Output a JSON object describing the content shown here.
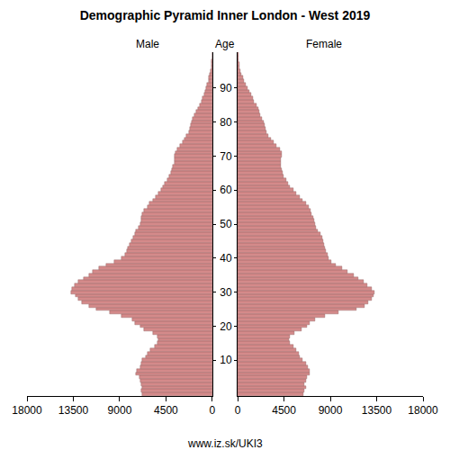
{
  "chart_data": {
    "type": "bar",
    "orientation": "horizontal",
    "title": "Demographic Pyramid Inner London - West 2019",
    "y_label": "Age",
    "source": "www.iz.sk/UKI3",
    "y": [
      0,
      1,
      2,
      3,
      4,
      5,
      6,
      7,
      8,
      9,
      10,
      11,
      12,
      13,
      14,
      15,
      16,
      17,
      18,
      19,
      20,
      21,
      22,
      23,
      24,
      25,
      26,
      27,
      28,
      29,
      30,
      31,
      32,
      33,
      34,
      35,
      36,
      37,
      38,
      39,
      40,
      41,
      42,
      43,
      44,
      45,
      46,
      47,
      48,
      49,
      50,
      51,
      52,
      53,
      54,
      55,
      56,
      57,
      58,
      59,
      60,
      61,
      62,
      63,
      64,
      65,
      66,
      67,
      68,
      69,
      70,
      71,
      72,
      73,
      74,
      75,
      76,
      77,
      78,
      79,
      80,
      81,
      82,
      83,
      84,
      85,
      86,
      87,
      88,
      89,
      90,
      91,
      92,
      93,
      94,
      95,
      96,
      97,
      98,
      99,
      100
    ],
    "series": [
      {
        "name": "Male",
        "color": "#d48a8a",
        "values": [
          6800,
          6900,
          6800,
          6900,
          7000,
          7100,
          7400,
          7300,
          7000,
          6900,
          6800,
          6500,
          6300,
          6000,
          5600,
          5300,
          5200,
          5300,
          5800,
          6600,
          7000,
          7500,
          7800,
          8800,
          10000,
          11300,
          12000,
          12700,
          13000,
          13300,
          13700,
          13600,
          13400,
          13000,
          12500,
          12000,
          11600,
          11000,
          10300,
          9500,
          8800,
          8500,
          8300,
          8200,
          8000,
          7900,
          7700,
          7500,
          7400,
          7200,
          7000,
          6900,
          6900,
          6800,
          6600,
          6300,
          6100,
          5800,
          5500,
          5200,
          5000,
          4800,
          4600,
          4400,
          4200,
          4000,
          3900,
          3800,
          3700,
          3700,
          3700,
          3600,
          3400,
          3100,
          2900,
          2700,
          2500,
          2300,
          2200,
          2100,
          2000,
          1900,
          1700,
          1600,
          1400,
          1200,
          1050,
          950,
          800,
          700,
          600,
          480,
          380,
          300,
          220,
          160,
          110,
          80,
          50,
          30,
          30
        ]
      },
      {
        "name": "Female",
        "color": "#d48a8a",
        "values": [
          6400,
          6500,
          6600,
          6500,
          6600,
          6700,
          7000,
          7000,
          6800,
          6600,
          6300,
          6000,
          5900,
          5700,
          5400,
          5100,
          5000,
          5100,
          5500,
          6200,
          6700,
          7000,
          7500,
          8500,
          9800,
          11500,
          12300,
          12700,
          13000,
          13200,
          13300,
          13000,
          12600,
          12200,
          11700,
          11300,
          10700,
          10100,
          9500,
          9100,
          8800,
          8700,
          8600,
          8500,
          8400,
          8300,
          8200,
          8000,
          7800,
          7600,
          7500,
          7400,
          7300,
          7200,
          7100,
          6900,
          6600,
          6300,
          6000,
          5700,
          5400,
          5100,
          4900,
          4700,
          4500,
          4400,
          4300,
          4200,
          4200,
          4200,
          4300,
          4300,
          4100,
          3800,
          3500,
          3200,
          3000,
          2800,
          2700,
          2600,
          2500,
          2400,
          2200,
          2100,
          2000,
          1800,
          1600,
          1500,
          1300,
          1100,
          950,
          800,
          650,
          500,
          380,
          280,
          200,
          140,
          90,
          60,
          50
        ]
      }
    ],
    "xlim": [
      0,
      18000
    ],
    "xticks": [
      0,
      4500,
      9000,
      13500,
      18000
    ],
    "ylim": [
      -0.5,
      100.5
    ],
    "yticks": [
      10,
      20,
      30,
      40,
      50,
      60,
      70,
      80,
      90
    ],
    "grid": false
  }
}
